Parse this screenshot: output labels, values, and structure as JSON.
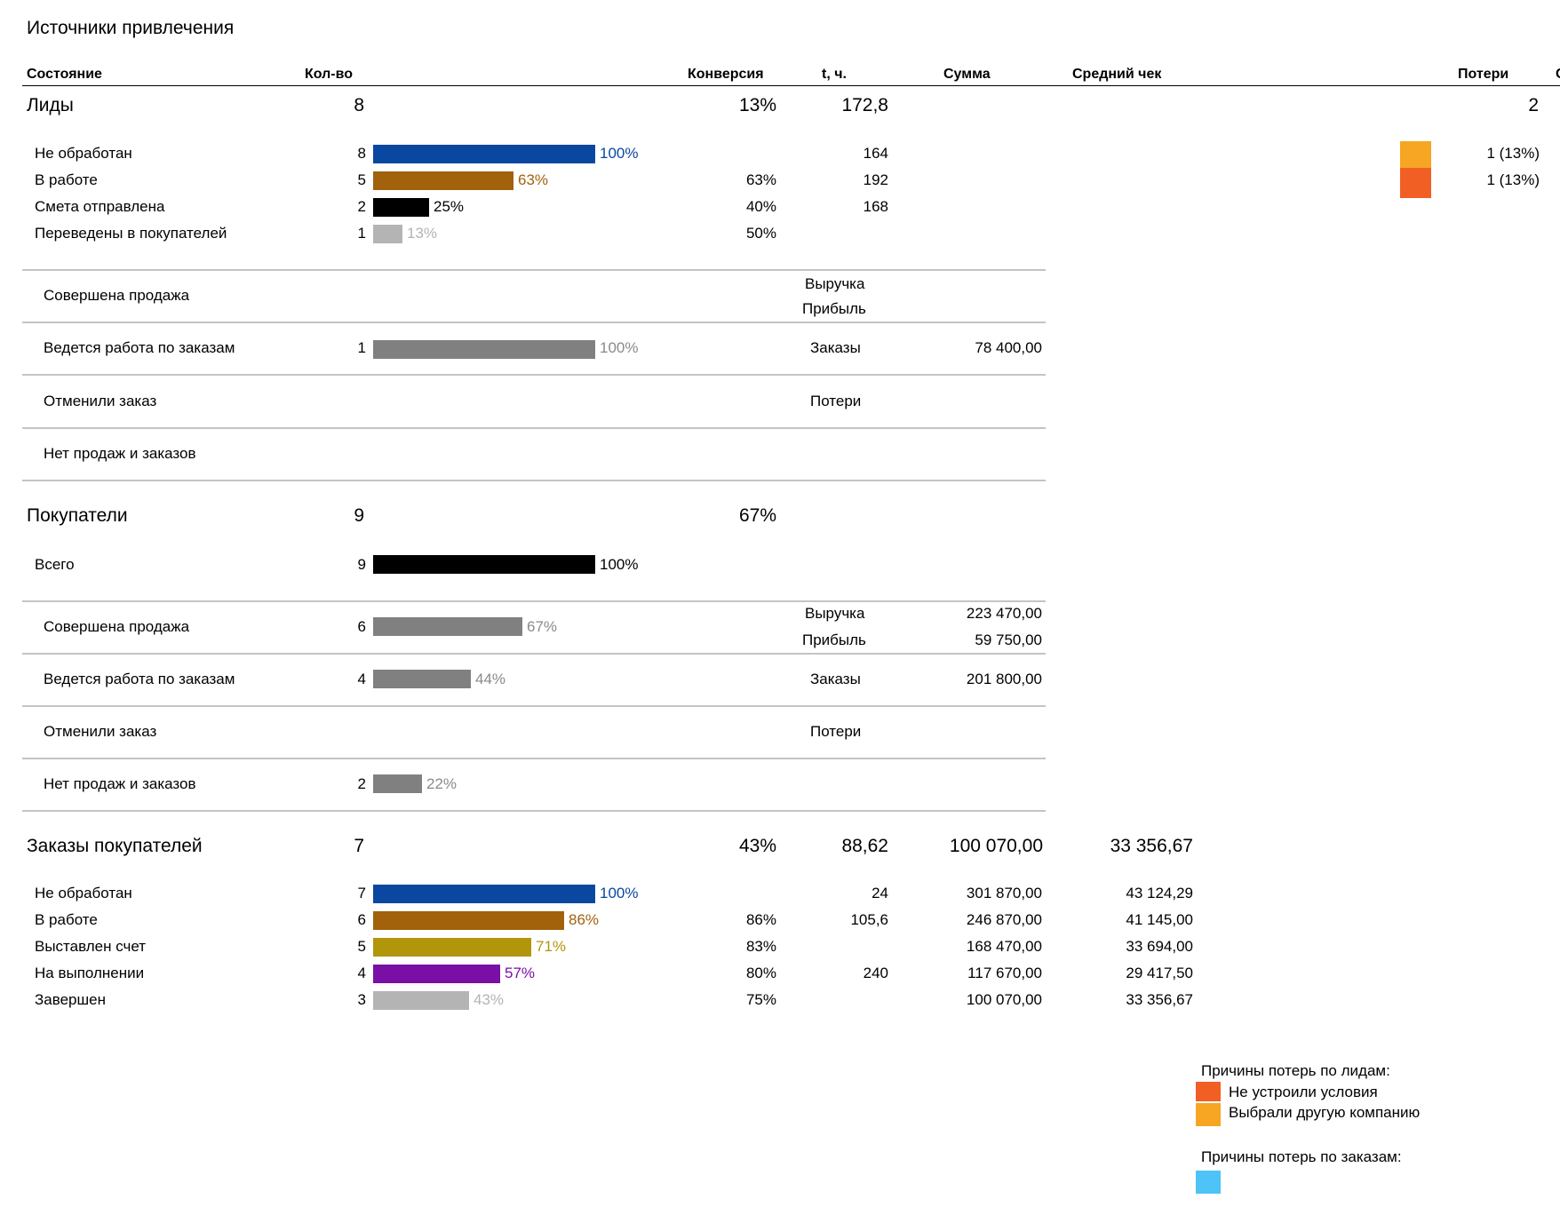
{
  "title": "Источники привлечения",
  "headers": {
    "state": "Состояние",
    "qty": "Кол-во",
    "conversion": "Конверсия",
    "t": "t, ч.",
    "sum": "Сумма",
    "avg": "Средний чек",
    "losses": "Потери",
    "cut": "С"
  },
  "leads": {
    "label": "Лиды",
    "qty": "8",
    "conversion": "13%",
    "t": "172,8",
    "losses": "2",
    "rows": [
      {
        "label": "Не обработан",
        "qty": "8",
        "pct": "100%",
        "fraction": 1.0,
        "color": "#0a47a0",
        "conv": "",
        "t": "164",
        "loss": "1 (13%)",
        "loss_color": "#f6a623"
      },
      {
        "label": "В работе",
        "qty": "5",
        "pct": "63%",
        "fraction": 0.63,
        "color": "#a1620b",
        "conv": "63%",
        "t": "192",
        "loss": "1 (13%)",
        "loss_color": "#f15f25"
      },
      {
        "label": "Смета отправлена",
        "qty": "2",
        "pct": "25%",
        "fraction": 0.25,
        "color": "#000000",
        "conv": "40%",
        "t": "168",
        "loss": "",
        "loss_color": ""
      },
      {
        "label": "Переведены в покупателей",
        "qty": "1",
        "pct": "13%",
        "fraction": 0.13,
        "color": "#b4b4b4",
        "conv": "50%",
        "t": "",
        "loss": "",
        "loss_color": ""
      }
    ],
    "sold": {
      "label": "Совершена продажа",
      "revenue_label": "Выручка",
      "profit_label": "Прибыль"
    },
    "orders": {
      "label": "Ведется работа по заказам",
      "qty": "1",
      "pct": "100%",
      "fraction": 1.0,
      "orders_label": "Заказы",
      "orders_sum": "78 400,00"
    },
    "cancelled": {
      "label": "Отменили заказ",
      "losses_label": "Потери"
    },
    "none": {
      "label": "Нет продаж и заказов"
    }
  },
  "buyers": {
    "label": "Покупатели",
    "qty": "9",
    "conversion": "67%",
    "total": {
      "label": "Всего",
      "qty": "9",
      "pct": "100%",
      "fraction": 1.0
    },
    "sold": {
      "label": "Совершена продажа",
      "qty": "6",
      "pct": "67%",
      "fraction": 0.67,
      "revenue_label": "Выручка",
      "revenue": "223 470,00",
      "profit_label": "Прибыль",
      "profit": "59 750,00"
    },
    "orders": {
      "label": "Ведется работа по заказам",
      "qty": "4",
      "pct": "44%",
      "fraction": 0.44,
      "orders_label": "Заказы",
      "orders_sum": "201 800,00"
    },
    "cancelled": {
      "label": "Отменили заказ",
      "losses_label": "Потери"
    },
    "none": {
      "label": "Нет продаж и заказов",
      "qty": "2",
      "pct": "22%",
      "fraction": 0.22
    }
  },
  "orders": {
    "label": "Заказы покупателей",
    "qty": "7",
    "conversion": "43%",
    "t": "88,62",
    "sum": "100 070,00",
    "avg": "33 356,67",
    "rows": [
      {
        "label": "Не обработан",
        "qty": "7",
        "pct": "100%",
        "fraction": 1.0,
        "color": "#0a47a0",
        "conv": "",
        "t": "24",
        "sum": "301 870,00",
        "avg": "43 124,29"
      },
      {
        "label": "В работе",
        "qty": "6",
        "pct": "86%",
        "fraction": 0.86,
        "color": "#a1620b",
        "conv": "86%",
        "t": "105,6",
        "sum": "246 870,00",
        "avg": "41 145,00"
      },
      {
        "label": "Выставлен счет",
        "qty": "5",
        "pct": "71%",
        "fraction": 0.71,
        "color": "#b1960c",
        "conv": "83%",
        "t": "",
        "sum": "168 470,00",
        "avg": "33 694,00"
      },
      {
        "label": "На выполнении",
        "qty": "4",
        "pct": "57%",
        "fraction": 0.57,
        "color": "#7a0fa5",
        "conv": "80%",
        "t": "240",
        "sum": "117 670,00",
        "avg": "29 417,50"
      },
      {
        "label": "Завершен",
        "qty": "3",
        "pct": "43%",
        "fraction": 0.43,
        "color": "#b4b4b4",
        "conv": "75%",
        "t": "",
        "sum": "100 070,00",
        "avg": "33 356,67"
      }
    ]
  },
  "legend": {
    "leads_title": "Причины потерь по лидам:",
    "leads_items": [
      {
        "label": "Не устроили условия",
        "color": "#f15f25"
      },
      {
        "label": "Выбрали другую компанию",
        "color": "#f6a623"
      }
    ],
    "orders_title": "Причины потерь по заказам:",
    "orders_color": "#4dc3f7"
  },
  "colors": {
    "gray_bar": "#808080",
    "gray_text": "#8a8a8a",
    "blue_text": "#0a47a0",
    "brown_text": "#a1620b",
    "gold_text": "#b1960c",
    "purple_text": "#7a0fa5",
    "light_text": "#b4b4b4"
  }
}
